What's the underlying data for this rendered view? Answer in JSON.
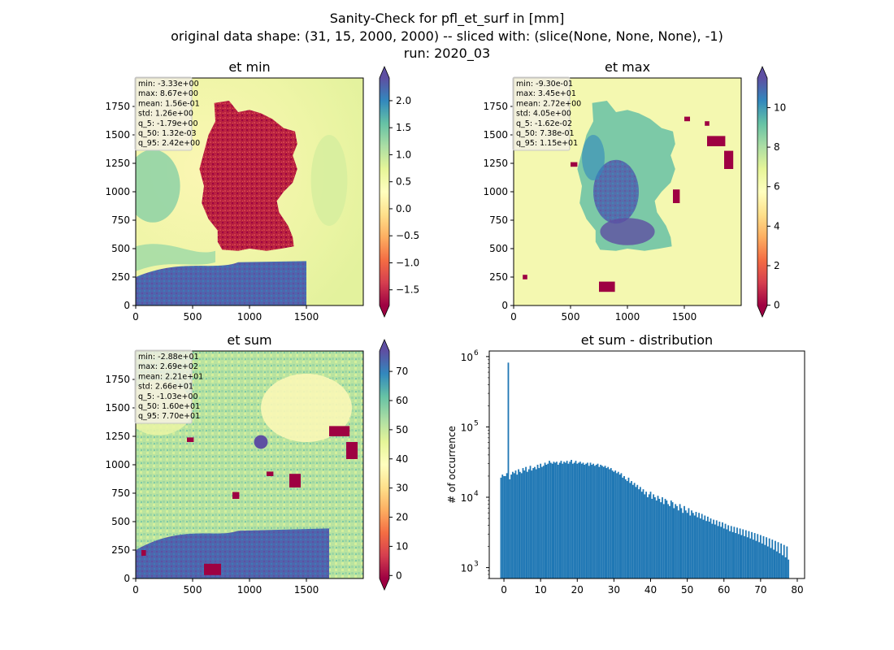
{
  "figure": {
    "title_lines": [
      "Sanity-Check for pfl_et_surf in [mm]",
      "original data shape: (31, 15, 2000, 2000) -- sliced with: (slice(None, None, None), -1)",
      "run: 2020_03"
    ]
  },
  "chart_data": [
    {
      "type": "heatmap",
      "id": "et-min",
      "title": "et min",
      "x_ticks": [
        "0",
        "500",
        "1000",
        "1500"
      ],
      "y_ticks": [
        "0",
        "250",
        "500",
        "750",
        "1000",
        "1250",
        "1500",
        "1750"
      ],
      "xlim": [
        0,
        2000
      ],
      "ylim": [
        0,
        2000
      ],
      "colormap": "Spectral",
      "color_range": [
        -1.79,
        2.42
      ],
      "colorbar_ticks": [
        "−1.5",
        "−1.0",
        "−0.5",
        "0.0",
        "0.5",
        "1.0",
        "1.5",
        "2.0"
      ],
      "colorbar_tick_values": [
        -1.5,
        -1.0,
        -0.5,
        0.0,
        0.5,
        1.0,
        1.5,
        2.0
      ],
      "stats": [
        "min: -3.33e+00",
        "max: 8.67e+00",
        "mean: 1.56e-01",
        "std: 1.26e+00",
        "q_5: -1.79e+00",
        "q_50: 1.32e-03",
        "q_95: 2.42e+00"
      ]
    },
    {
      "type": "heatmap",
      "id": "et-max",
      "title": "et max",
      "x_ticks": [
        "0",
        "500",
        "1000",
        "1500"
      ],
      "y_ticks": [
        "0",
        "250",
        "500",
        "750",
        "1000",
        "1250",
        "1500",
        "1750"
      ],
      "xlim": [
        0,
        2000
      ],
      "ylim": [
        0,
        2000
      ],
      "colormap": "Spectral",
      "color_range": [
        -0.0162,
        11.5
      ],
      "colorbar_ticks": [
        "0",
        "2",
        "4",
        "6",
        "8",
        "10"
      ],
      "colorbar_tick_values": [
        0,
        2,
        4,
        6,
        8,
        10
      ],
      "stats": [
        "min: -9.30e-01",
        "max: 3.45e+01",
        "mean: 2.72e+00",
        "std: 4.05e+00",
        "q_5: -1.62e-02",
        "q_50: 7.38e-01",
        "q_95: 1.15e+01"
      ]
    },
    {
      "type": "heatmap",
      "id": "et-sum",
      "title": "et sum",
      "x_ticks": [
        "0",
        "500",
        "1000",
        "1500"
      ],
      "y_ticks": [
        "0",
        "250",
        "500",
        "750",
        "1000",
        "1250",
        "1500",
        "1750"
      ],
      "xlim": [
        0,
        2000
      ],
      "ylim": [
        0,
        2000
      ],
      "colormap": "Spectral",
      "color_range": [
        -1.03,
        77.0
      ],
      "colorbar_ticks": [
        "0",
        "10",
        "20",
        "30",
        "40",
        "50",
        "60",
        "70"
      ],
      "colorbar_tick_values": [
        0,
        10,
        20,
        30,
        40,
        50,
        60,
        70
      ],
      "stats": [
        "min: -2.88e+01",
        "max: 2.69e+02",
        "mean: 2.21e+01",
        "std: 2.66e+01",
        "q_5: -1.03e+00",
        "q_50: 1.60e+01",
        "q_95: 7.70e+01"
      ]
    },
    {
      "type": "bar",
      "id": "et-sum-distribution",
      "title": "et sum - distribution",
      "xlabel": "",
      "ylabel": "# of occurrence",
      "x_ticks": [
        "0",
        "10",
        "20",
        "30",
        "40",
        "50",
        "60",
        "70",
        "80"
      ],
      "x_tick_values": [
        0,
        10,
        20,
        30,
        40,
        50,
        60,
        70,
        80
      ],
      "y_ticks": [
        "10",
        "10",
        "10",
        "10"
      ],
      "y_tick_exponents": [
        "3",
        "4",
        "5",
        "6"
      ],
      "y_tick_values": [
        1000,
        10000,
        100000,
        1000000
      ],
      "xlim": [
        -4,
        82
      ],
      "ylim": [
        700,
        1200000
      ],
      "y_scale": "log",
      "color": "#1f77b4",
      "bin_start": -1.0,
      "bin_width": 0.4,
      "values": [
        19000,
        21000,
        20000,
        20000,
        22000,
        820000,
        18000,
        21000,
        23000,
        22000,
        24000,
        21000,
        25000,
        23000,
        22000,
        26000,
        24000,
        27000,
        23000,
        25000,
        28000,
        24000,
        26000,
        27000,
        25000,
        29000,
        26000,
        30000,
        27000,
        28000,
        31000,
        29000,
        30000,
        33000,
        31000,
        30000,
        32000,
        31000,
        32000,
        29000,
        31000,
        33000,
        30000,
        32000,
        31000,
        33000,
        30000,
        32000,
        34000,
        30000,
        31000,
        33000,
        30000,
        31000,
        32000,
        30000,
        31000,
        29000,
        30000,
        31000,
        28000,
        31000,
        29000,
        30000,
        28000,
        29000,
        30000,
        27000,
        29000,
        28000,
        27000,
        28000,
        26000,
        27000,
        25000,
        26000,
        24000,
        23000,
        24000,
        22000,
        23000,
        21000,
        22000,
        19000,
        20000,
        18000,
        17000,
        19000,
        16000,
        17000,
        15000,
        16000,
        14000,
        15000,
        13000,
        14000,
        12000,
        13000,
        11000,
        12000,
        10000,
        11000,
        12000,
        9500,
        11000,
        10000,
        9000,
        10500,
        9500,
        8500,
        10000,
        8000,
        9500,
        9000,
        8000,
        7500,
        9000,
        8500,
        7000,
        8000,
        7500,
        6500,
        8000,
        7000,
        6000,
        7500,
        6500,
        6000,
        7000,
        5500,
        6500,
        6000,
        5500,
        6200,
        5200,
        6000,
        5000,
        5800,
        4800,
        5500,
        4600,
        5300,
        4500,
        5000,
        4200,
        4800,
        4100,
        4700,
        3900,
        4500,
        3800,
        4400,
        3600,
        4200,
        3500,
        4000,
        3300,
        3900,
        3200,
        3800,
        3100,
        3700,
        3000,
        3600,
        2900,
        3500,
        2800,
        3400,
        2700,
        3300,
        2600,
        3200,
        2500,
        3100,
        2400,
        3000,
        2300,
        2900,
        2200,
        2800,
        2100,
        2700,
        2000,
        2600,
        1900,
        2500,
        1800,
        2400,
        1700,
        2300,
        1600,
        2200,
        1500,
        2100,
        1400,
        2000,
        1300
      ]
    }
  ]
}
